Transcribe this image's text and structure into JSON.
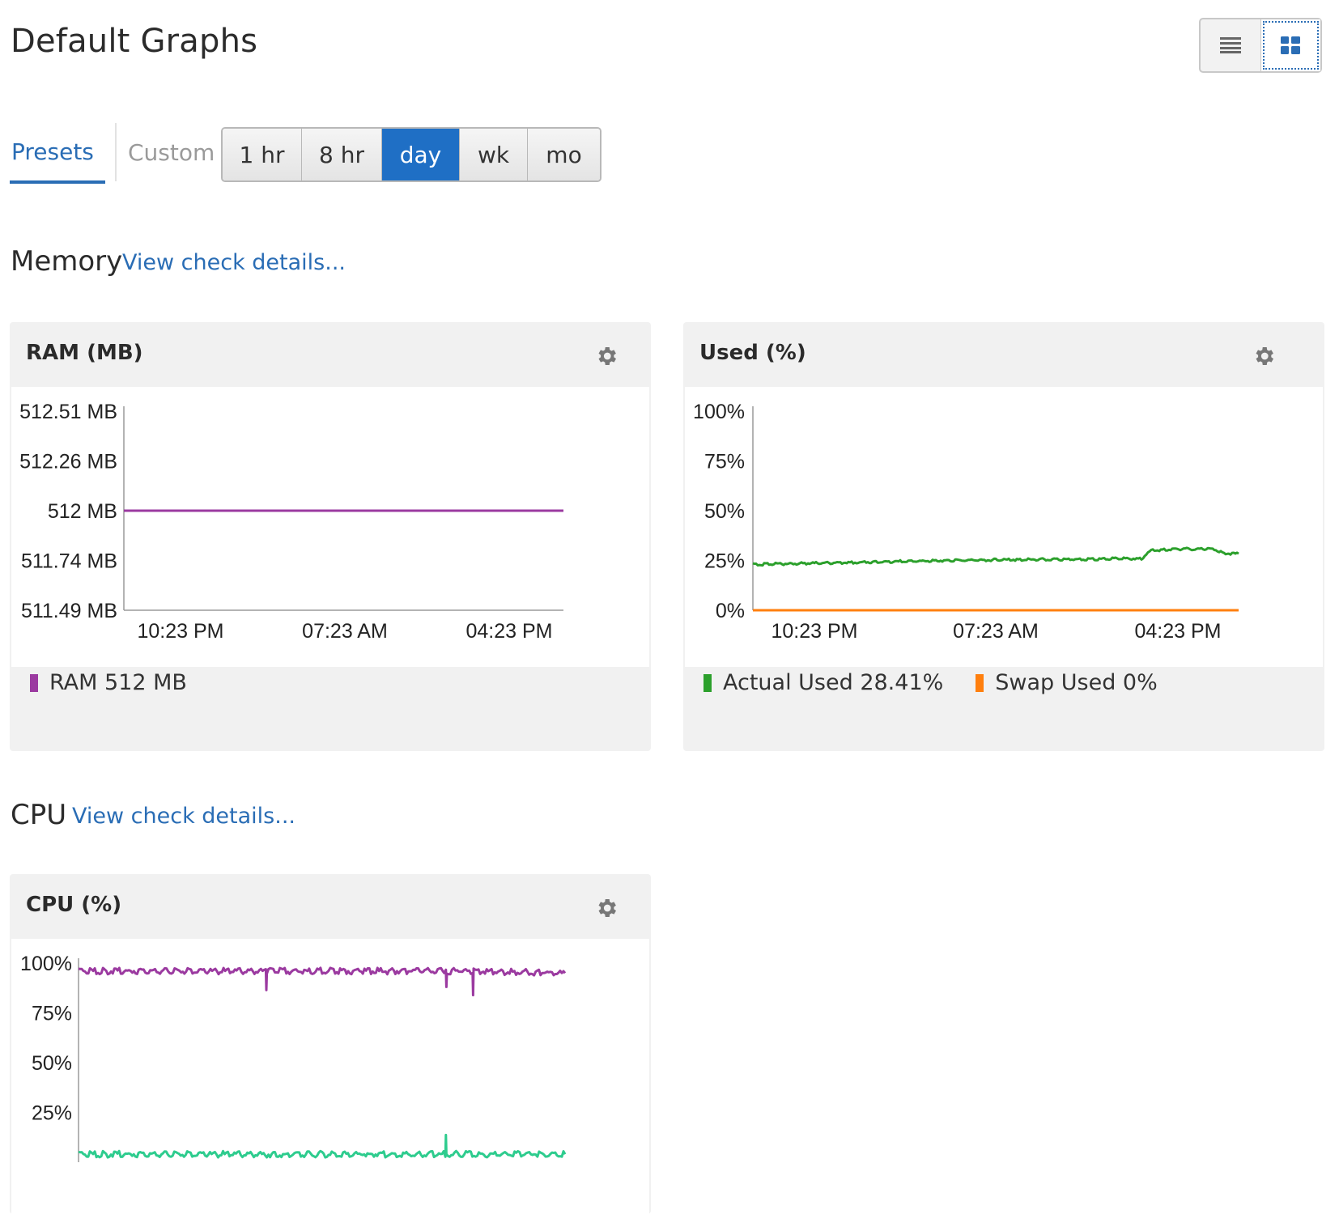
{
  "page": {
    "title": "Default Graphs"
  },
  "view_toggle": {
    "list_icon": "list-icon",
    "grid_icon": "grid-icon",
    "active": "grid"
  },
  "tabs": [
    {
      "label": "Presets",
      "active": true
    },
    {
      "label": "Custom",
      "active": false
    }
  ],
  "time_ranges": [
    {
      "label": "1 hr",
      "active": false
    },
    {
      "label": "8 hr",
      "active": false
    },
    {
      "label": "day",
      "active": true
    },
    {
      "label": "wk",
      "active": false
    },
    {
      "label": "mo",
      "active": false
    }
  ],
  "sections": {
    "memory": {
      "title": "Memory",
      "link": "View check details..."
    },
    "cpu": {
      "title": "CPU",
      "link": "View check details..."
    }
  },
  "colors": {
    "accent": "#2a6db5",
    "ram": "#9b3aa0",
    "actual_used": "#2ca02c",
    "swap_used": "#ff7f0e",
    "cpu_user": "#9b3aa0",
    "cpu_other": "#2ecc8e"
  },
  "cards": {
    "ram": {
      "title": "RAM (MB)",
      "legend": [
        {
          "label": "RAM 512 MB",
          "color": "#9b3aa0"
        }
      ]
    },
    "used": {
      "title": "Used (%)",
      "legend": [
        {
          "label": "Actual Used 28.41%",
          "color": "#2ca02c"
        },
        {
          "label": "Swap Used 0%",
          "color": "#ff7f0e"
        }
      ]
    },
    "cpu": {
      "title": "CPU (%)"
    }
  },
  "chart_data": [
    {
      "type": "line",
      "title": "RAM (MB)",
      "x_ticks": [
        "10:23 PM",
        "07:23 AM",
        "04:23 PM"
      ],
      "y_ticks": [
        "512.51 MB",
        "512.26 MB",
        "512 MB",
        "511.74 MB",
        "511.49 MB"
      ],
      "ylim": [
        511.49,
        512.51
      ],
      "series": [
        {
          "name": "RAM",
          "x": [
            0,
            1
          ],
          "values": [
            512,
            512
          ]
        }
      ],
      "legend": [
        "RAM 512 MB"
      ]
    },
    {
      "type": "line",
      "title": "Used (%)",
      "x_ticks": [
        "10:23 PM",
        "07:23 AM",
        "04:23 PM"
      ],
      "y_ticks": [
        "100%",
        "75%",
        "50%",
        "25%",
        "0%"
      ],
      "ylim": [
        0,
        100
      ],
      "series": [
        {
          "name": "Actual Used",
          "x": [
            0,
            0.1,
            0.2,
            0.3,
            0.4,
            0.5,
            0.6,
            0.7,
            0.8,
            0.82,
            0.85,
            0.9,
            0.95,
            0.97,
            1.0
          ],
          "values": [
            23,
            23.5,
            24,
            24.5,
            25,
            25.3,
            25.5,
            25.7,
            26,
            30,
            30.5,
            30.8,
            30.8,
            28.5,
            28.4
          ]
        },
        {
          "name": "Swap Used",
          "x": [
            0,
            1
          ],
          "values": [
            0,
            0
          ]
        }
      ],
      "legend": [
        "Actual Used 28.41%",
        "Swap Used 0%"
      ]
    },
    {
      "type": "line",
      "title": "CPU (%)",
      "y_ticks": [
        "100%",
        "75%",
        "50%",
        "25%"
      ],
      "ylim": [
        0,
        100
      ],
      "series": [
        {
          "name": "",
          "x": [
            0,
            0.385,
            0.386,
            0.387,
            0.755,
            0.756,
            0.757,
            0.81,
            0.811,
            0.812,
            1.0
          ],
          "values": [
            96,
            96,
            88,
            96,
            96,
            88,
            96,
            96,
            85,
            96,
            95
          ]
        },
        {
          "name": "",
          "x": [
            0,
            0.754,
            0.755,
            0.756,
            1.0
          ],
          "values": [
            4,
            4,
            13,
            4,
            4
          ]
        }
      ]
    }
  ]
}
